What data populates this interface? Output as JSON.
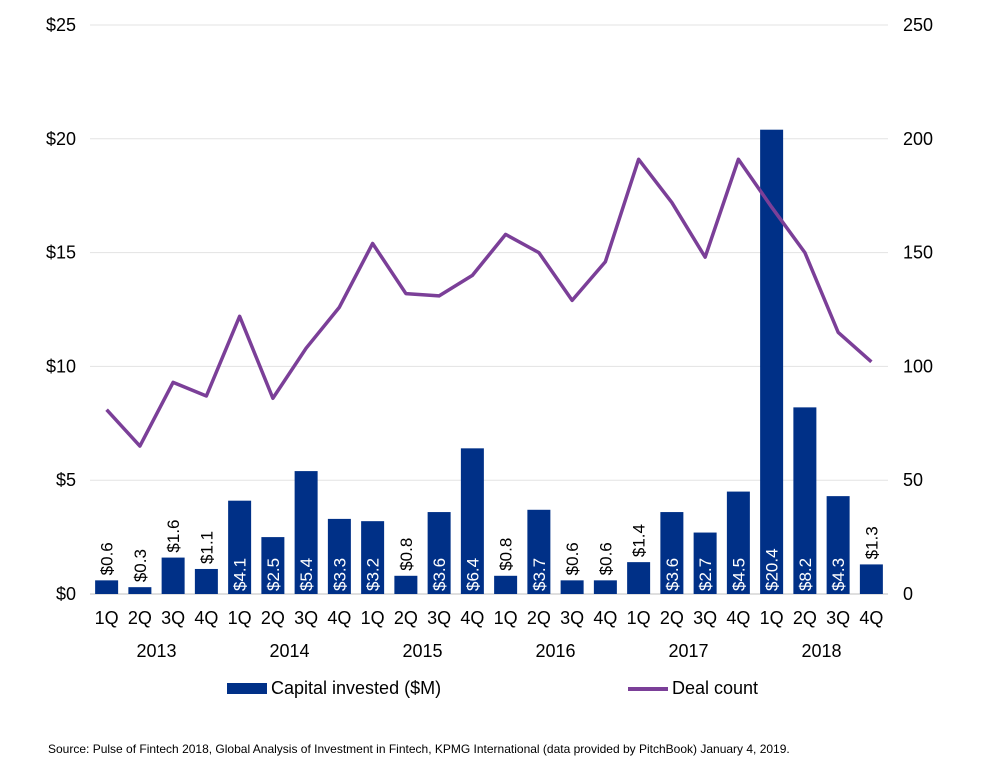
{
  "chart_data": {
    "type": "bar",
    "categories": [
      "1Q",
      "2Q",
      "3Q",
      "4Q",
      "1Q",
      "2Q",
      "3Q",
      "4Q",
      "1Q",
      "2Q",
      "3Q",
      "4Q",
      "1Q",
      "2Q",
      "3Q",
      "4Q",
      "1Q",
      "2Q",
      "3Q",
      "4Q",
      "1Q",
      "2Q",
      "3Q",
      "4Q"
    ],
    "years": [
      "2013",
      "2014",
      "2015",
      "2016",
      "2017",
      "2018"
    ],
    "series": [
      {
        "name": "Capital invested ($M)",
        "type": "bar",
        "axis": "left",
        "color": "#003087",
        "values": [
          0.6,
          0.3,
          1.6,
          1.1,
          4.1,
          2.5,
          5.4,
          3.3,
          3.2,
          0.8,
          3.6,
          6.4,
          0.8,
          3.7,
          0.6,
          0.6,
          1.4,
          3.6,
          2.7,
          4.5,
          20.4,
          8.2,
          4.3,
          1.3
        ],
        "labels": [
          "$0.6",
          "$0.3",
          "$1.6",
          "$1.1",
          "$4.1",
          "$2.5",
          "$5.4",
          "$3.3",
          "$3.2",
          "$0.8",
          "$3.6",
          "$6.4",
          "$0.8",
          "$3.7",
          "$0.6",
          "$0.6",
          "$1.4",
          "$3.6",
          "$2.7",
          "$4.5",
          "$20.4",
          "$8.2",
          "$4.3",
          "$1.3"
        ]
      },
      {
        "name": "Deal count",
        "type": "line",
        "axis": "right",
        "color": "#7b3f98",
        "values": [
          81,
          65,
          93,
          87,
          122,
          86,
          108,
          126,
          154,
          132,
          131,
          140,
          158,
          150,
          129,
          146,
          191,
          172,
          148,
          191,
          170,
          150,
          115,
          102
        ]
      }
    ],
    "y_left": {
      "ylim": [
        0,
        25
      ],
      "ticks": [
        0,
        5,
        10,
        15,
        20,
        25
      ],
      "tick_labels": [
        "$0",
        "$5",
        "$10",
        "$15",
        "$20",
        "$25"
      ]
    },
    "y_right": {
      "ylim": [
        0,
        250
      ],
      "ticks": [
        0,
        50,
        100,
        150,
        200,
        250
      ],
      "tick_labels": [
        "0",
        "50",
        "100",
        "150",
        "200",
        "250"
      ]
    },
    "grid": true,
    "legend_position": "bottom"
  },
  "legend": {
    "capital_label": "Capital invested ($M)",
    "deal_label": "Deal count"
  },
  "source": "Source: Pulse of Fintech 2018, Global Analysis of Investment in Fintech, KPMG International (data provided by PitchBook) January 4, 2019."
}
